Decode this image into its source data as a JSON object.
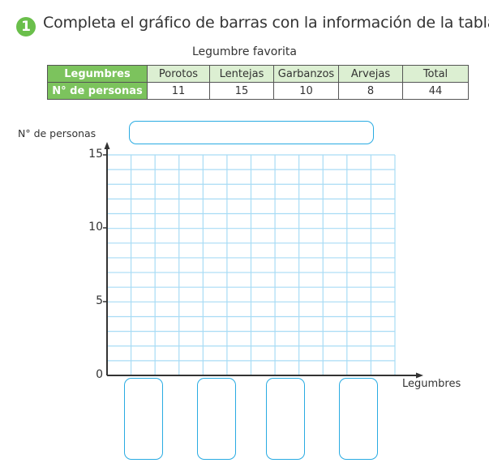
{
  "exercise": {
    "number": "1",
    "instruction": "Completa el gráfico de barras con la información de la tabla."
  },
  "table": {
    "title": "Legumbre favorita",
    "row_headers": [
      "Legumbres",
      "N° de personas"
    ],
    "columns": [
      "Porotos",
      "Lentejas",
      "Garbanzos",
      "Arvejas",
      "Total"
    ],
    "values": [
      "11",
      "15",
      "10",
      "8",
      "44"
    ]
  },
  "chart": {
    "y_axis_label": "N° de personas",
    "x_axis_label": "Legumbres",
    "y_ticks": [
      "15",
      "10",
      "5",
      "0"
    ],
    "title_input": "",
    "category_inputs": [
      "",
      "",
      "",
      ""
    ],
    "grid_color": "#a8dcf5",
    "box_color": "#29abe2"
  },
  "colors": {
    "header_green": "#7cc35d",
    "header_light": "#dcefd2"
  }
}
